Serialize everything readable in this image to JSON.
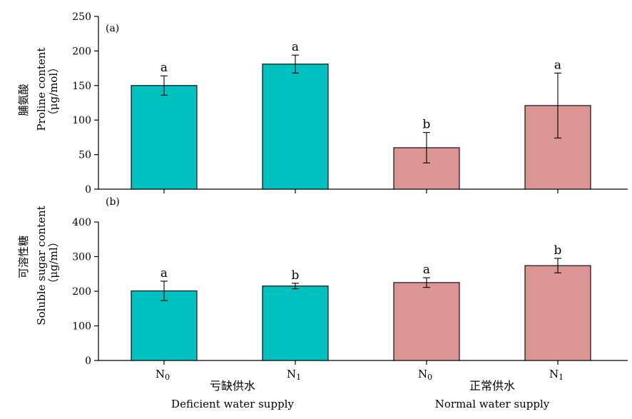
{
  "chart_data": [
    {
      "type": "bar",
      "panel_label": "(a)",
      "title": "",
      "ylabel_cn": "脯氨酸",
      "ylabel_en": "Proline content",
      "ylabel_unit": "（μg/mol）",
      "ylim": [
        0,
        250
      ],
      "yticks": [
        0,
        50,
        100,
        150,
        200,
        250
      ],
      "categories": [
        {
          "main": "N",
          "sub": "0"
        },
        {
          "main": "N",
          "sub": "1"
        },
        {
          "main": "N",
          "sub": "0"
        },
        {
          "main": "N",
          "sub": "1"
        }
      ],
      "groups": [
        "deficient",
        "deficient",
        "normal",
        "normal"
      ],
      "values": [
        150,
        181,
        60,
        121
      ],
      "errors": [
        14,
        13,
        22,
        47
      ],
      "significance": [
        "a",
        "a",
        "b",
        "a"
      ]
    },
    {
      "type": "bar",
      "panel_label": "(b)",
      "title": "",
      "ylabel_cn": "可溶性糖",
      "ylabel_en": "Soluble sugar content",
      "ylabel_unit": "（μg/ml）",
      "ylim": [
        0,
        400
      ],
      "yticks": [
        0,
        100,
        200,
        300,
        400
      ],
      "categories": [
        {
          "main": "N",
          "sub": "0"
        },
        {
          "main": "N",
          "sub": "1"
        },
        {
          "main": "N",
          "sub": "0"
        },
        {
          "main": "N",
          "sub": "1"
        }
      ],
      "groups": [
        "deficient",
        "deficient",
        "normal",
        "normal"
      ],
      "values": [
        201,
        215,
        225,
        274
      ],
      "errors": [
        28,
        8,
        14,
        21
      ],
      "significance": [
        "a",
        "b",
        "a",
        "b"
      ]
    }
  ],
  "x_groups": [
    {
      "cn": "亏缺供水",
      "en": "Deficient water supply"
    },
    {
      "cn": "正常供水",
      "en": "Normal water supply"
    }
  ],
  "colors": {
    "deficient": "#00c0c0",
    "normal": "#db9595",
    "axis": "#000000"
  }
}
